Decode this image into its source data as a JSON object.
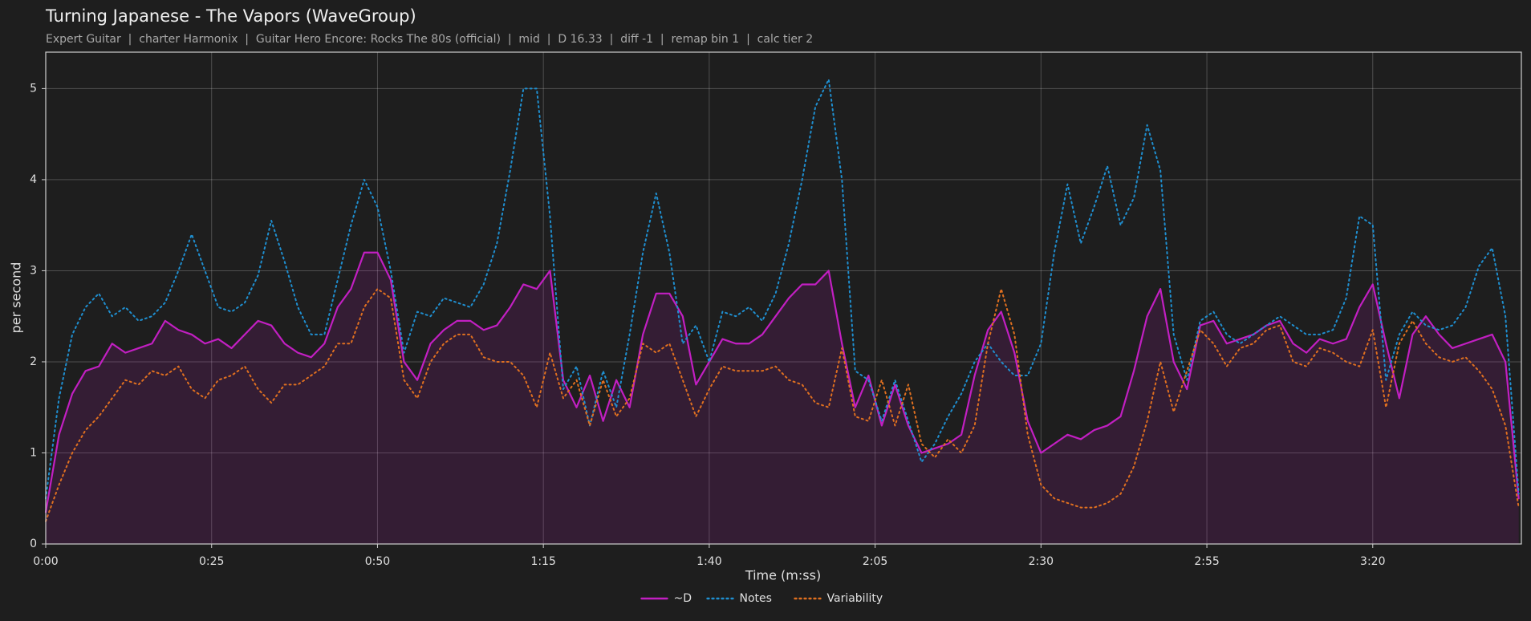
{
  "chart_data": {
    "type": "line",
    "title": "Turning Japanese - The Vapors (WaveGroup)",
    "subtitle": "Expert Guitar  |  charter Harmonix  |  Guitar Hero Encore: Rocks The 80s (official)  |  mid  |  D 16.33  |  diff -1  |  remap bin 1  |  calc tier 2",
    "xlabel": "Time (m:ss)",
    "ylabel": "per second",
    "xlim": [
      0,
      222.4
    ],
    "ylim": [
      0,
      5.4
    ],
    "xticks": [
      {
        "value": 0,
        "label": "0:00"
      },
      {
        "value": 25,
        "label": "0:25"
      },
      {
        "value": 50,
        "label": "0:50"
      },
      {
        "value": 75,
        "label": "1:15"
      },
      {
        "value": 100,
        "label": "1:40"
      },
      {
        "value": 125,
        "label": "2:05"
      },
      {
        "value": 150,
        "label": "2:30"
      },
      {
        "value": 175,
        "label": "2:55"
      },
      {
        "value": 200,
        "label": "3:20"
      }
    ],
    "yticks": [
      0,
      1,
      2,
      3,
      4,
      5
    ],
    "grid": true,
    "legend": "bottom",
    "x": [
      0,
      2,
      4,
      6,
      8,
      10,
      12,
      14,
      16,
      18,
      20,
      22,
      24,
      26,
      28,
      30,
      32,
      34,
      36,
      38,
      40,
      42,
      44,
      46,
      48,
      50,
      52,
      54,
      56,
      58,
      60,
      62,
      64,
      66,
      68,
      70,
      72,
      74,
      76,
      78,
      80,
      82,
      84,
      86,
      88,
      90,
      92,
      94,
      96,
      98,
      100,
      102,
      104,
      106,
      108,
      110,
      112,
      114,
      116,
      118,
      120,
      122,
      124,
      126,
      128,
      130,
      132,
      134,
      136,
      138,
      140,
      142,
      144,
      146,
      148,
      150,
      152,
      154,
      156,
      158,
      160,
      162,
      164,
      166,
      168,
      170,
      172,
      174,
      176,
      178,
      180,
      182,
      184,
      186,
      188,
      190,
      192,
      194,
      196,
      198,
      200,
      202,
      204,
      206,
      208,
      210,
      212,
      214,
      216,
      218,
      220,
      222
    ],
    "series": [
      {
        "name": "~D",
        "color": "#c21fc2",
        "linestyle": "solid",
        "fill": true,
        "values": [
          0.35,
          1.2,
          1.65,
          1.9,
          1.95,
          2.2,
          2.1,
          2.15,
          2.2,
          2.45,
          2.35,
          2.3,
          2.2,
          2.25,
          2.15,
          2.3,
          2.45,
          2.4,
          2.2,
          2.1,
          2.05,
          2.2,
          2.6,
          2.8,
          3.2,
          3.2,
          2.9,
          2.0,
          1.8,
          2.2,
          2.35,
          2.45,
          2.45,
          2.35,
          2.4,
          2.6,
          2.85,
          2.8,
          3.0,
          1.8,
          1.5,
          1.85,
          1.35,
          1.8,
          1.5,
          2.3,
          2.75,
          2.75,
          2.5,
          1.75,
          2.0,
          2.25,
          2.2,
          2.2,
          2.3,
          2.5,
          2.7,
          2.85,
          2.85,
          3.0,
          2.2,
          1.5,
          1.85,
          1.3,
          1.75,
          1.3,
          1.0,
          1.05,
          1.1,
          1.2,
          1.85,
          2.35,
          2.55,
          2.1,
          1.35,
          1.0,
          1.1,
          1.2,
          1.15,
          1.25,
          1.3,
          1.4,
          1.9,
          2.5,
          2.8,
          2.0,
          1.7,
          2.4,
          2.45,
          2.2,
          2.25,
          2.3,
          2.4,
          2.45,
          2.2,
          2.1,
          2.25,
          2.2,
          2.25,
          2.6,
          2.85,
          2.2,
          1.6,
          2.3,
          2.5,
          2.3,
          2.15,
          2.2,
          2.25,
          2.3,
          2.0,
          0.5
        ]
      },
      {
        "name": "Notes",
        "color": "#1f8fd0",
        "linestyle": "dotted",
        "fill": false,
        "values": [
          0.5,
          1.6,
          2.3,
          2.6,
          2.75,
          2.5,
          2.6,
          2.45,
          2.5,
          2.65,
          3.0,
          3.4,
          3.0,
          2.6,
          2.55,
          2.65,
          2.95,
          3.55,
          3.1,
          2.6,
          2.3,
          2.3,
          2.9,
          3.5,
          4.0,
          3.7,
          3.0,
          2.1,
          2.55,
          2.5,
          2.7,
          2.65,
          2.6,
          2.85,
          3.3,
          4.1,
          5.0,
          5.0,
          3.6,
          1.7,
          1.95,
          1.3,
          1.9,
          1.5,
          2.3,
          3.2,
          3.85,
          3.2,
          2.2,
          2.4,
          2.0,
          2.55,
          2.5,
          2.6,
          2.45,
          2.75,
          3.3,
          4.0,
          4.8,
          5.1,
          4.0,
          1.9,
          1.8,
          1.35,
          1.8,
          1.35,
          0.9,
          1.1,
          1.4,
          1.65,
          2.0,
          2.2,
          2.0,
          1.85,
          1.85,
          2.2,
          3.2,
          3.95,
          3.3,
          3.7,
          4.15,
          3.5,
          3.8,
          4.6,
          4.1,
          2.3,
          1.8,
          2.45,
          2.55,
          2.3,
          2.2,
          2.3,
          2.4,
          2.5,
          2.4,
          2.3,
          2.3,
          2.35,
          2.7,
          3.6,
          3.5,
          1.8,
          2.3,
          2.55,
          2.4,
          2.35,
          2.4,
          2.6,
          3.05,
          3.25,
          2.5,
          0.55
        ]
      },
      {
        "name": "Variability",
        "color": "#e07020",
        "linestyle": "dotted",
        "fill": false,
        "values": [
          0.25,
          0.65,
          1.0,
          1.25,
          1.4,
          1.6,
          1.8,
          1.75,
          1.9,
          1.85,
          1.95,
          1.7,
          1.6,
          1.8,
          1.85,
          1.95,
          1.7,
          1.55,
          1.75,
          1.75,
          1.85,
          1.95,
          2.2,
          2.2,
          2.6,
          2.8,
          2.7,
          1.8,
          1.6,
          2.0,
          2.2,
          2.3,
          2.3,
          2.05,
          2.0,
          2.0,
          1.85,
          1.5,
          2.1,
          1.6,
          1.8,
          1.3,
          1.8,
          1.4,
          1.6,
          2.2,
          2.1,
          2.2,
          1.8,
          1.4,
          1.7,
          1.95,
          1.9,
          1.9,
          1.9,
          1.95,
          1.8,
          1.75,
          1.55,
          1.5,
          2.15,
          1.4,
          1.35,
          1.8,
          1.3,
          1.75,
          1.1,
          0.95,
          1.15,
          1.0,
          1.3,
          2.2,
          2.8,
          2.3,
          1.2,
          0.65,
          0.5,
          0.45,
          0.4,
          0.4,
          0.45,
          0.55,
          0.85,
          1.35,
          2.0,
          1.45,
          1.9,
          2.35,
          2.2,
          1.95,
          2.15,
          2.2,
          2.35,
          2.4,
          2.0,
          1.95,
          2.15,
          2.1,
          2.0,
          1.95,
          2.35,
          1.5,
          2.2,
          2.45,
          2.2,
          2.05,
          2.0,
          2.05,
          1.9,
          1.7,
          1.3,
          0.4
        ]
      }
    ]
  }
}
